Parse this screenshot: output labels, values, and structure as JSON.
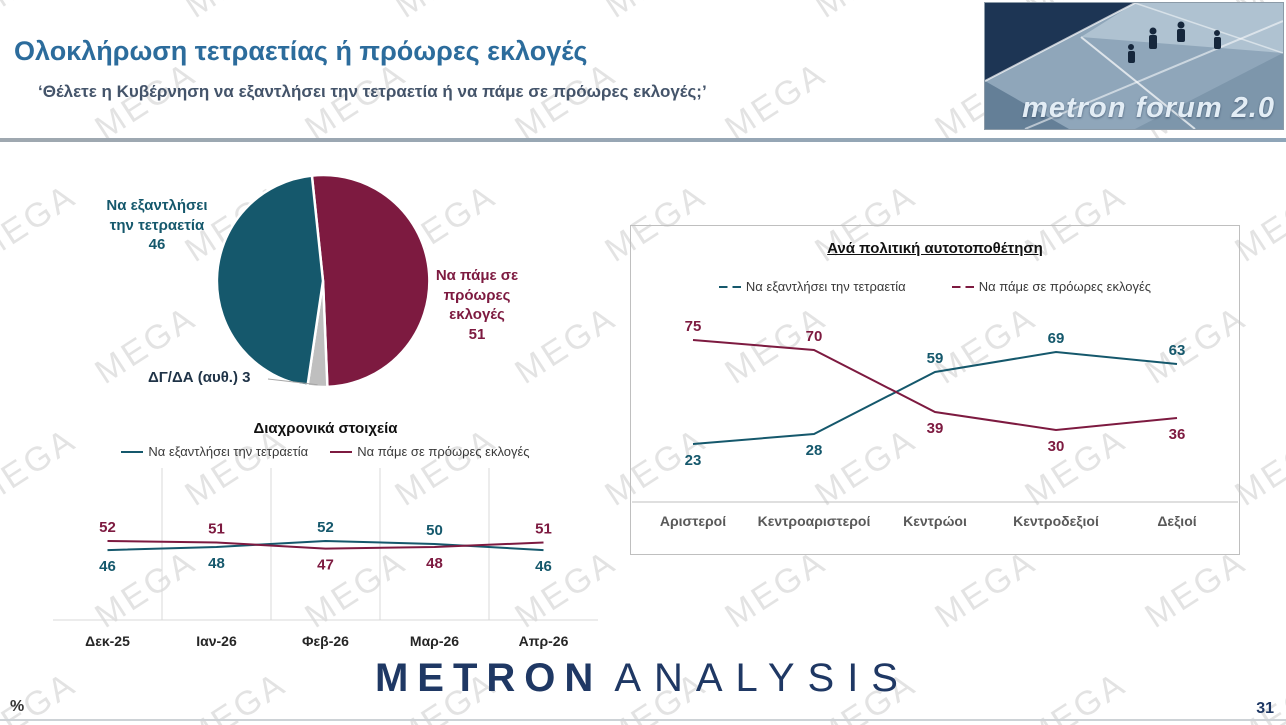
{
  "header": {
    "title": "Ολοκλήρωση τετραετίας ή πρόωρες εκλογές",
    "subtitle": "‘Θέλετε η Κυβέρνηση να εξαντλήσει την τετραετία ή να πάμε σε πρόωρες εκλογές;’",
    "logo_text": "metron forum 2.0"
  },
  "watermark": {
    "text": "MEGA"
  },
  "footer": {
    "unit": "%",
    "page_number": "31",
    "logo_part1": "METRON",
    "logo_part2": "ANALYSIS"
  },
  "colors": {
    "teal": "#15586C",
    "maroon": "#7D1A40",
    "gray": "#BFBFBF",
    "axis": "#D9D9D9"
  },
  "chart_data": [
    {
      "id": "pie",
      "type": "pie",
      "start_angle": -6,
      "slices": [
        {
          "label": "Να πάμε σε πρόωρες εκλογές",
          "value": 51,
          "color_key": "maroon"
        },
        {
          "label": "ΔΓ/ΔΑ (αυθ.)",
          "value": 3,
          "color_key": "gray"
        },
        {
          "label": "Να εξαντλήσει την τετραετία",
          "value": 46,
          "color_key": "teal"
        }
      ]
    },
    {
      "id": "timeseries",
      "type": "line",
      "title": "Διαχρονικά στοιχεία",
      "categories": [
        "Δεκ-25",
        "Ιαν-26",
        "Φεβ-26",
        "Μαρ-26",
        "Απρ-26"
      ],
      "series": [
        {
          "name": "Να εξαντλήσει την τετραετία",
          "color_key": "teal",
          "values": [
            46,
            48,
            52,
            50,
            46
          ]
        },
        {
          "name": "Να πάμε σε πρόωρες εκλογές",
          "color_key": "maroon",
          "values": [
            52,
            51,
            47,
            48,
            51
          ]
        }
      ],
      "ylim": [
        0,
        100
      ],
      "grid": "vertical-separators",
      "legend_position": "top"
    },
    {
      "id": "political",
      "type": "line",
      "title": "Ανά πολιτική αυτοτοποθέτηση",
      "categories": [
        "Αριστεροί",
        "Κεντροαριστεροί",
        "Κεντρώοι",
        "Κεντροδεξιοί",
        "Δεξιοί"
      ],
      "series": [
        {
          "name": "Να εξαντλήσει την τετραετία",
          "color_key": "teal",
          "values": [
            23,
            28,
            59,
            69,
            63
          ]
        },
        {
          "name": "Να πάμε σε πρόωρες εκλογές",
          "color_key": "maroon",
          "values": [
            75,
            70,
            39,
            30,
            36
          ]
        }
      ],
      "ylim": [
        10,
        90
      ],
      "grid": "none",
      "legend_position": "top"
    }
  ]
}
